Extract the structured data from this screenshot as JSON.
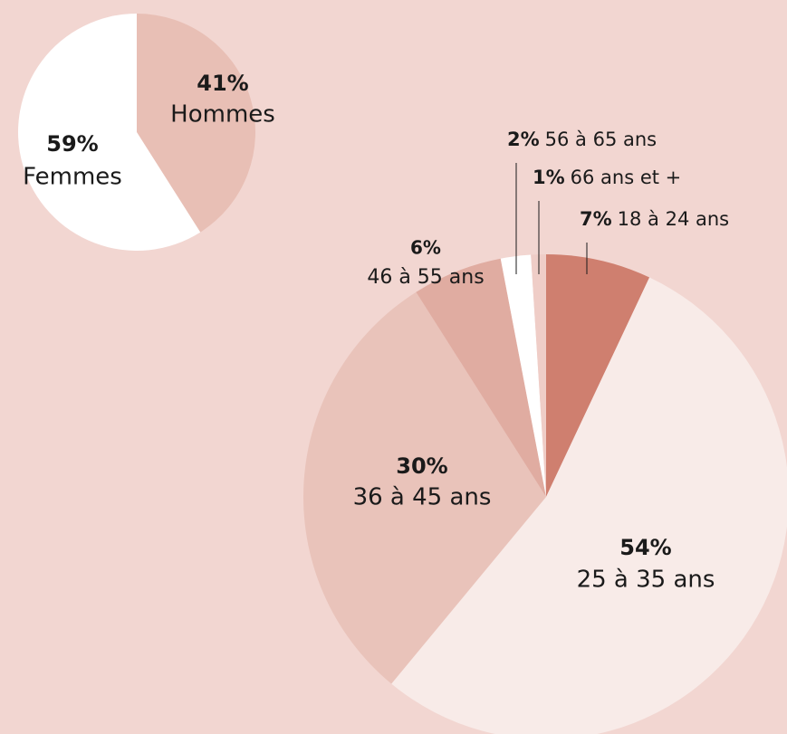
{
  "chart_data": [
    {
      "type": "pie",
      "categories": [
        "Hommes",
        "Femmes"
      ],
      "values": [
        41,
        59
      ],
      "value_labels": [
        "41%",
        "59%"
      ],
      "colors": [
        "#e8bfb5",
        "#ffffff"
      ]
    },
    {
      "type": "pie",
      "categories": [
        "18 à 24 ans",
        "25 à 35 ans",
        "36 à 45 ans",
        "46 à 55 ans",
        "56 à 65 ans",
        "66 ans et +"
      ],
      "values": [
        7,
        54,
        30,
        6,
        2,
        1
      ],
      "value_labels": [
        "7%",
        "54%",
        "30%",
        "6%",
        "2%",
        "1%"
      ],
      "colors": [
        "#cf7f6f",
        "#f8ebe8",
        "#e9c3ba",
        "#e0aca1",
        "#ffffff",
        "#efcdc7"
      ]
    }
  ]
}
